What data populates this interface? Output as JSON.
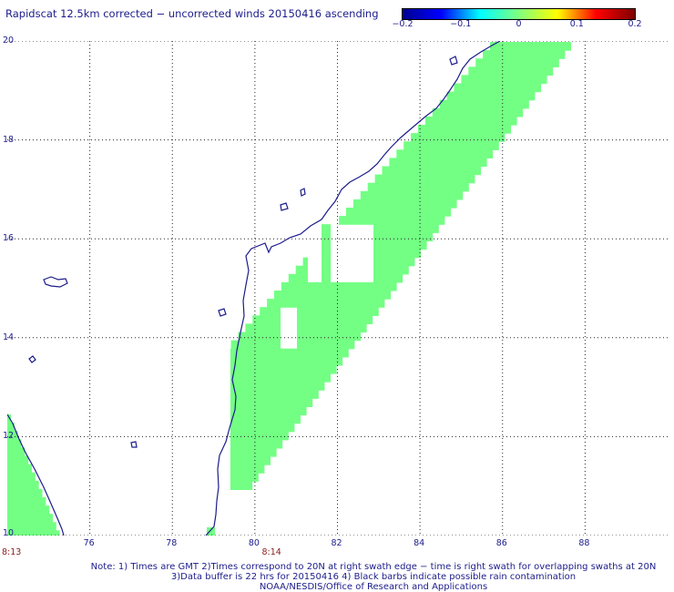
{
  "title": "Rapidscat 12.5km corrected − uncorrected winds 20150416 ascending",
  "colorbar": {
    "ticks": [
      "−0.2",
      "−0.1",
      "0",
      "0.1",
      "0.2"
    ],
    "tick_values": [
      -0.2,
      -0.1,
      0,
      0.1,
      0.2
    ],
    "range": [
      -0.2,
      0.2
    ],
    "colors": [
      "#00008f",
      "#0000ff",
      "#00ffff",
      "#7fff7f",
      "#ffff00",
      "#ff0000",
      "#7f0000"
    ]
  },
  "map": {
    "lon_range": [
      74,
      90
    ],
    "lat_range": [
      10,
      20
    ],
    "x_ticks": [
      "76",
      "78",
      "80",
      "82",
      "84",
      "86",
      "88"
    ],
    "x_tick_values": [
      76,
      78,
      80,
      82,
      84,
      86,
      88
    ],
    "y_ticks": [
      "20",
      "18",
      "16",
      "14",
      "12",
      "10"
    ],
    "y_tick_values": [
      20,
      18,
      16,
      14,
      12,
      10
    ],
    "grid": true,
    "swath_color": "#73ff84",
    "coast_color": "#1c1c8c",
    "time_labels": [
      {
        "text": "8:13",
        "lon": 74
      },
      {
        "text": "8:14",
        "lon": 80.3
      }
    ]
  },
  "notes": [
    "Note: 1) Times are GMT 2)Times correspond to 20N at right swath edge − time is right swath for overlapping swaths at 20N",
    "3)Data buffer is 22 hrs for 20150416 4) Black barbs indicate possible rain contamination",
    "NOAA/NESDIS/Office of Research and Applications"
  ]
}
